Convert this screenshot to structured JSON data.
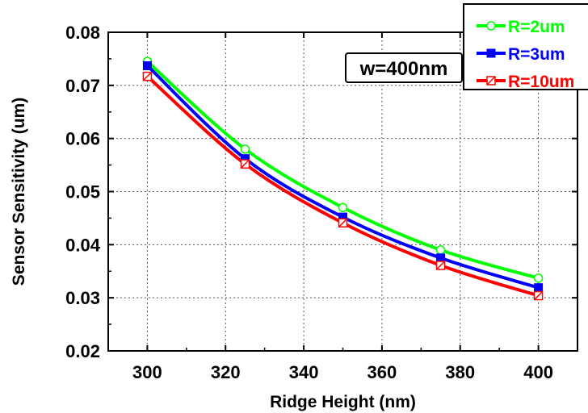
{
  "chart_data": {
    "type": "line",
    "title": "",
    "xlabel": "Ridge Height (nm)",
    "ylabel": "Sensor Sensitivity (um)",
    "xlim": [
      290,
      410
    ],
    "ylim": [
      0.02,
      0.08
    ],
    "x_ticks": [
      300,
      320,
      340,
      360,
      380,
      400
    ],
    "y_ticks": [
      0.02,
      0.03,
      0.04,
      0.05,
      0.06,
      0.07,
      0.08
    ],
    "x_tick_labels": [
      "300",
      "320",
      "340",
      "360",
      "380",
      "400"
    ],
    "y_tick_labels": [
      "0.02",
      "0.03",
      "0.04",
      "0.05",
      "0.06",
      "0.07",
      "0.08"
    ],
    "grid": true,
    "legend_position": "top-right",
    "annotation": "w=400nm",
    "series": [
      {
        "name": "R=2um",
        "color": "#00ff00",
        "marker": "open-circle",
        "x": [
          300,
          325,
          350,
          375,
          400
        ],
        "y": [
          0.0745,
          0.058,
          0.047,
          0.039,
          0.0337
        ]
      },
      {
        "name": "R=3um",
        "color": "#0000ff",
        "marker": "filled-square",
        "x": [
          300,
          325,
          350,
          375,
          400
        ],
        "y": [
          0.0737,
          0.0562,
          0.0452,
          0.0375,
          0.0319
        ]
      },
      {
        "name": "R=10um",
        "color": "#ff0000",
        "marker": "half-square",
        "x": [
          300,
          325,
          350,
          375,
          400
        ],
        "y": [
          0.0717,
          0.0552,
          0.0441,
          0.0361,
          0.0304
        ]
      }
    ]
  }
}
